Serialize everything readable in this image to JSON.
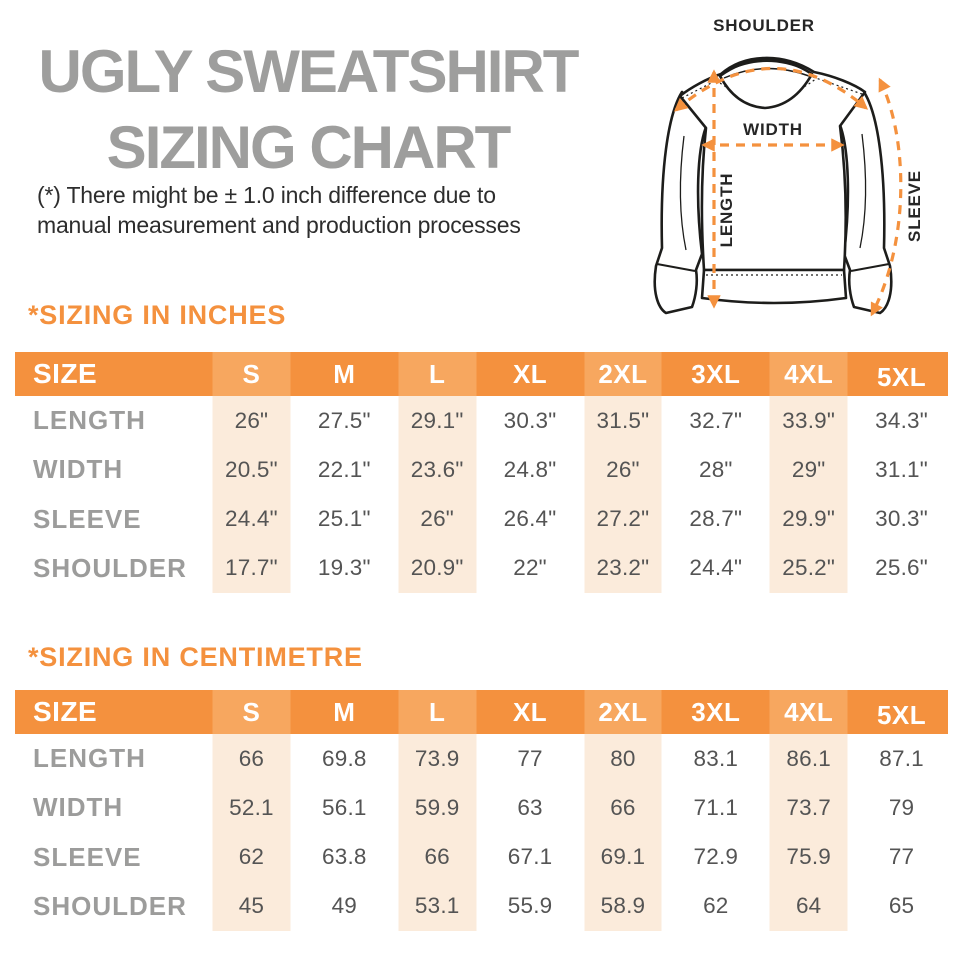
{
  "title": {
    "line1": "UGLY SWEATSHIRT",
    "line2": "SIZING CHART"
  },
  "note": {
    "line1": "(*) There might be ± 1.0 inch difference due to",
    "line2": "manual measurement and production processes"
  },
  "diagram": {
    "shoulder_label": "SHOULDER",
    "width_label": "WIDTH",
    "length_label": "LENGTH",
    "sleeve_label": "SLEEVE"
  },
  "colors": {
    "orange": "#f4913e",
    "orange_light_header": "#f7a75f",
    "peach_column": "#fbebdb",
    "title_gray": "#9e9e9d",
    "row_label_gray": "#9c9c9b",
    "value_text": "#545454",
    "note_text": "#2d2d2d"
  },
  "tables": [
    {
      "section_title": "*SIZING IN INCHES",
      "header": [
        "SIZE",
        "S",
        "M",
        "L",
        "XL",
        "2XL",
        "3XL",
        "4XL",
        "5XL"
      ],
      "rows": [
        {
          "label": "LENGTH",
          "values": [
            "26\"",
            "27.5\"",
            "29.1\"",
            "30.3\"",
            "31.5\"",
            "32.7\"",
            "33.9\"",
            "34.3\""
          ]
        },
        {
          "label": "WIDTH",
          "values": [
            "20.5\"",
            "22.1\"",
            "23.6\"",
            "24.8\"",
            "26\"",
            "28\"",
            "29\"",
            "31.1\""
          ]
        },
        {
          "label": "SLEEVE",
          "values": [
            "24.4\"",
            "25.1\"",
            "26\"",
            "26.4\"",
            "27.2\"",
            "28.7\"",
            "29.9\"",
            "30.3\""
          ]
        },
        {
          "label": "SHOULDER",
          "values": [
            "17.7\"",
            "19.3\"",
            "20.9\"",
            "22\"",
            "23.2\"",
            "24.4\"",
            "25.2\"",
            "25.6\""
          ]
        }
      ]
    },
    {
      "section_title": "*SIZING IN CENTIMETRE",
      "header": [
        "SIZE",
        "S",
        "M",
        "L",
        "XL",
        "2XL",
        "3XL",
        "4XL",
        "5XL"
      ],
      "rows": [
        {
          "label": "LENGTH",
          "values": [
            "66",
            "69.8",
            "73.9",
            "77",
            "80",
            "83.1",
            "86.1",
            "87.1"
          ]
        },
        {
          "label": "WIDTH",
          "values": [
            "52.1",
            "56.1",
            "59.9",
            "63",
            "66",
            "71.1",
            "73.7",
            "79"
          ]
        },
        {
          "label": "SLEEVE",
          "values": [
            "62",
            "63.8",
            "66",
            "67.1",
            "69.1",
            "72.9",
            "75.9",
            "77"
          ]
        },
        {
          "label": "SHOULDER",
          "values": [
            "45",
            "49",
            "53.1",
            "55.9",
            "58.9",
            "62",
            "64",
            "65"
          ]
        }
      ]
    }
  ]
}
